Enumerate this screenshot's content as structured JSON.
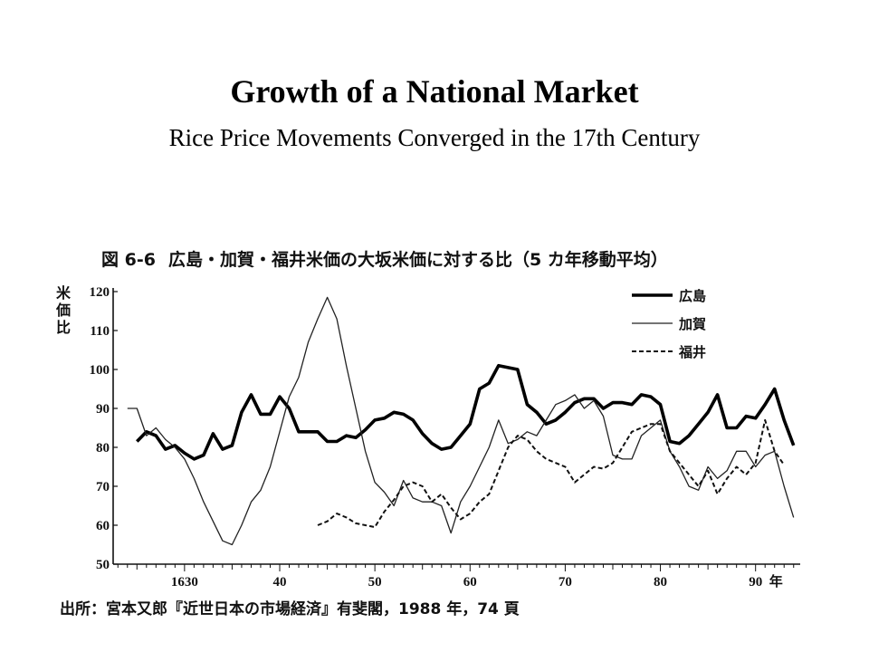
{
  "title": "Growth of a National Market",
  "subtitle": "Rice Price Movements Converged in the 17th Century",
  "figure": {
    "number": "図 6-6",
    "caption": "広島・加賀・福井米価の大坂米価に対する比（5 カ年移動平均）",
    "source": "出所：宮本又郎『近世日本の市場経済』有斐閣，1988 年，74 頁"
  },
  "chart_data": {
    "type": "line",
    "title": "広島・加賀・福井米価の大坂米価に対する比（5 カ年移動平均）",
    "ylabel": "米価比",
    "xlabel": "",
    "xlim": [
      1622.5,
      1694.5
    ],
    "ylim": [
      50,
      120
    ],
    "x_ticks": [
      {
        "value": 1630,
        "label": "1630"
      },
      {
        "value": 1640,
        "label": "40"
      },
      {
        "value": 1650,
        "label": "50"
      },
      {
        "value": 1660,
        "label": "60"
      },
      {
        "value": 1670,
        "label": "70"
      },
      {
        "value": 1680,
        "label": "80"
      },
      {
        "value": 1690,
        "label": "90"
      }
    ],
    "x_unit": "年",
    "y_ticks": [
      50,
      60,
      70,
      80,
      90,
      100,
      110,
      120
    ],
    "legend_position": "top-right",
    "series": [
      {
        "name": "広島",
        "style": "thick",
        "points": [
          [
            1625,
            81.5
          ],
          [
            1626,
            84
          ],
          [
            1627,
            83
          ],
          [
            1628,
            79.5
          ],
          [
            1629,
            80.5
          ],
          [
            1630,
            78.5
          ],
          [
            1631,
            77
          ],
          [
            1632,
            78
          ],
          [
            1633,
            83.5
          ],
          [
            1634,
            79.5
          ],
          [
            1635,
            80.5
          ],
          [
            1636,
            89
          ],
          [
            1637,
            93.5
          ],
          [
            1638,
            88.5
          ],
          [
            1639,
            88.5
          ],
          [
            1640,
            93
          ],
          [
            1641,
            90
          ],
          [
            1642,
            84
          ],
          [
            1643,
            84
          ],
          [
            1644,
            84
          ],
          [
            1645,
            81.5
          ],
          [
            1646,
            81.5
          ],
          [
            1647,
            83
          ],
          [
            1648,
            82.5
          ],
          [
            1649,
            84.5
          ],
          [
            1650,
            87
          ],
          [
            1651,
            87.5
          ],
          [
            1652,
            89
          ],
          [
            1653,
            88.5
          ],
          [
            1654,
            87
          ],
          [
            1655,
            83.5
          ],
          [
            1656,
            81
          ],
          [
            1657,
            79.5
          ],
          [
            1658,
            80
          ],
          [
            1659,
            83
          ],
          [
            1660,
            86
          ],
          [
            1661,
            95
          ],
          [
            1662,
            96.5
          ],
          [
            1663,
            101
          ],
          [
            1664,
            100.5
          ],
          [
            1665,
            100
          ],
          [
            1666,
            91
          ],
          [
            1667,
            89
          ],
          [
            1668,
            86
          ],
          [
            1669,
            87
          ],
          [
            1670,
            89
          ],
          [
            1671,
            91.5
          ],
          [
            1672,
            92.5
          ],
          [
            1673,
            92.5
          ],
          [
            1674,
            90
          ],
          [
            1675,
            91.5
          ],
          [
            1676,
            91.5
          ],
          [
            1677,
            91
          ],
          [
            1678,
            93.5
          ],
          [
            1679,
            93
          ],
          [
            1680,
            91
          ],
          [
            1681,
            81.5
          ],
          [
            1682,
            81
          ],
          [
            1683,
            83
          ],
          [
            1684,
            86
          ],
          [
            1685,
            89
          ],
          [
            1686,
            93.5
          ],
          [
            1687,
            85
          ],
          [
            1688,
            85
          ],
          [
            1689,
            88
          ],
          [
            1690,
            87.5
          ],
          [
            1691,
            91
          ],
          [
            1692,
            95
          ],
          [
            1693,
            87
          ],
          [
            1694,
            80.5
          ]
        ]
      },
      {
        "name": "加賀",
        "style": "thin",
        "points": [
          [
            1624,
            90
          ],
          [
            1625,
            90
          ],
          [
            1626,
            83
          ],
          [
            1627,
            85
          ],
          [
            1628,
            82
          ],
          [
            1629,
            80
          ],
          [
            1630,
            77
          ],
          [
            1631,
            72
          ],
          [
            1632,
            66
          ],
          [
            1633,
            61
          ],
          [
            1634,
            56
          ],
          [
            1635,
            55
          ],
          [
            1636,
            60
          ],
          [
            1637,
            66
          ],
          [
            1638,
            69
          ],
          [
            1639,
            75
          ],
          [
            1640,
            84
          ],
          [
            1641,
            93
          ],
          [
            1642,
            98
          ],
          [
            1643,
            107
          ],
          [
            1644,
            113
          ],
          [
            1645,
            118.5
          ],
          [
            1646,
            113
          ],
          [
            1647,
            101
          ],
          [
            1648,
            90
          ],
          [
            1649,
            79
          ],
          [
            1650,
            71
          ],
          [
            1651,
            68.5
          ],
          [
            1652,
            65
          ],
          [
            1653,
            71.5
          ],
          [
            1654,
            67
          ],
          [
            1655,
            66
          ],
          [
            1656,
            66
          ],
          [
            1657,
            65
          ],
          [
            1658,
            58
          ],
          [
            1659,
            66
          ],
          [
            1660,
            70
          ],
          [
            1661,
            75
          ],
          [
            1662,
            80
          ],
          [
            1663,
            87
          ],
          [
            1664,
            81
          ],
          [
            1665,
            82
          ],
          [
            1666,
            84
          ],
          [
            1667,
            83
          ],
          [
            1668,
            87
          ],
          [
            1669,
            91
          ],
          [
            1670,
            92
          ],
          [
            1671,
            93.5
          ],
          [
            1672,
            90
          ],
          [
            1673,
            92
          ],
          [
            1674,
            88
          ],
          [
            1675,
            78
          ],
          [
            1676,
            77
          ],
          [
            1677,
            77
          ],
          [
            1678,
            83
          ],
          [
            1679,
            85
          ],
          [
            1680,
            87
          ],
          [
            1681,
            79
          ],
          [
            1682,
            75
          ],
          [
            1683,
            70
          ],
          [
            1684,
            69
          ],
          [
            1685,
            75
          ],
          [
            1686,
            72
          ],
          [
            1687,
            74
          ],
          [
            1688,
            79
          ],
          [
            1689,
            79
          ],
          [
            1690,
            75
          ],
          [
            1691,
            78
          ],
          [
            1692,
            79
          ],
          [
            1693,
            70
          ],
          [
            1694,
            62
          ]
        ]
      },
      {
        "name": "福井",
        "style": "dashed",
        "points": [
          [
            1644,
            60
          ],
          [
            1645,
            61
          ],
          [
            1646,
            63
          ],
          [
            1647,
            62
          ],
          [
            1648,
            60.5
          ],
          [
            1649,
            60
          ],
          [
            1650,
            59.5
          ],
          [
            1651,
            63.5
          ],
          [
            1652,
            66.5
          ],
          [
            1653,
            70
          ],
          [
            1654,
            71
          ],
          [
            1655,
            70
          ],
          [
            1656,
            66
          ],
          [
            1657,
            68
          ],
          [
            1658,
            64.5
          ],
          [
            1659,
            61.5
          ],
          [
            1660,
            63
          ],
          [
            1661,
            66
          ],
          [
            1662,
            68
          ],
          [
            1663,
            74
          ],
          [
            1664,
            80
          ],
          [
            1665,
            83
          ],
          [
            1666,
            82
          ],
          [
            1667,
            79
          ],
          [
            1668,
            77
          ],
          [
            1669,
            76
          ],
          [
            1670,
            75
          ],
          [
            1671,
            71
          ],
          [
            1672,
            73
          ],
          [
            1673,
            75
          ],
          [
            1674,
            74.5
          ],
          [
            1675,
            76
          ],
          [
            1676,
            80
          ],
          [
            1677,
            84
          ],
          [
            1678,
            85
          ],
          [
            1679,
            86
          ],
          [
            1680,
            86
          ],
          [
            1681,
            79
          ],
          [
            1682,
            76
          ],
          [
            1683,
            73
          ],
          [
            1684,
            70
          ],
          [
            1685,
            74
          ],
          [
            1686,
            68
          ],
          [
            1687,
            72
          ],
          [
            1688,
            75
          ],
          [
            1689,
            73
          ],
          [
            1690,
            76
          ],
          [
            1691,
            87
          ],
          [
            1692,
            79
          ],
          [
            1693,
            75.5
          ]
        ]
      }
    ]
  }
}
